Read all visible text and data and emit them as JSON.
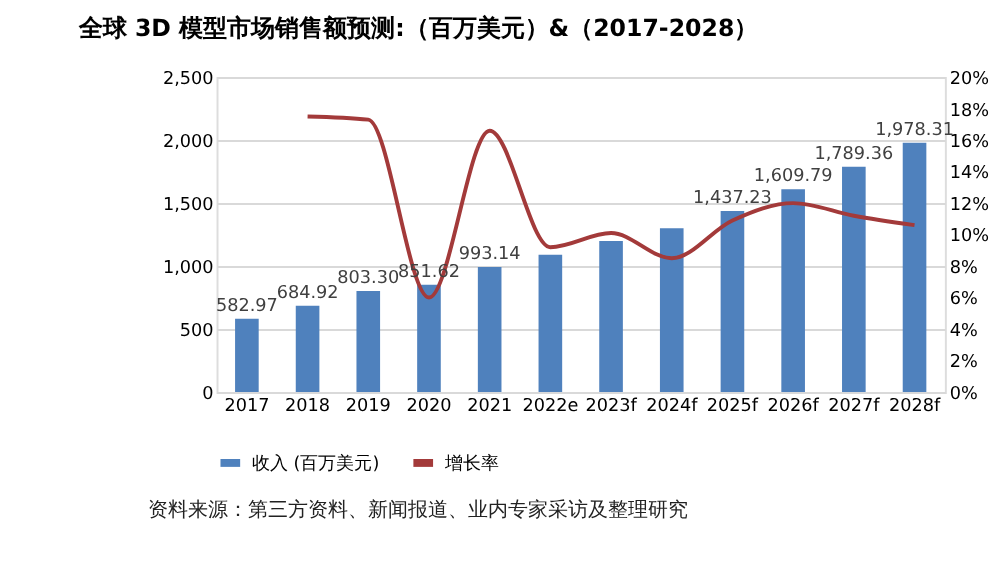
{
  "chart_data": {
    "type": "bar",
    "title": "全球 3D 模型市场销售额预测:（百万美元）&（2017-2028）",
    "categories": [
      "2017",
      "2018",
      "2019",
      "2020",
      "2021",
      "2022e",
      "2023f",
      "2024f",
      "2025f",
      "2026f",
      "2027f",
      "2028f"
    ],
    "series": [
      {
        "name": "收入 (百万美元)",
        "color": "#4f81bd",
        "values": [
          582.97,
          684.92,
          803.3,
          851.62,
          993.14,
          1090,
          1200,
          1300,
          1437.23,
          1609.79,
          1789.36,
          1978.31
        ],
        "value_labels": [
          "582.97",
          "684.92",
          "803.30",
          "851.62",
          "993.14",
          null,
          null,
          null,
          "1,437.23",
          "1,609.79",
          "1,789.36",
          "1,978.31"
        ]
      },
      {
        "name": "增长率",
        "type": "line",
        "axis": "y2",
        "color": "#a33a3a",
        "values": [
          null,
          17.5,
          17.3,
          6.0,
          16.6,
          9.2,
          10.1,
          8.5,
          10.9,
          12.0,
          11.2,
          10.6
        ]
      }
    ],
    "ylim": [
      0,
      2500
    ],
    "yticks": [
      {
        "value": 0,
        "label": "0"
      },
      {
        "value": 500,
        "label": "500"
      },
      {
        "value": 1000,
        "label": "1,000"
      },
      {
        "value": 1500,
        "label": "1,500"
      },
      {
        "value": 2000,
        "label": "2,000"
      },
      {
        "value": 2500,
        "label": "2,500"
      }
    ],
    "y2lim": [
      0,
      20
    ],
    "y2ticks": [
      {
        "value": 0,
        "label": "0%"
      },
      {
        "value": 2,
        "label": "2%"
      },
      {
        "value": 4,
        "label": "4%"
      },
      {
        "value": 6,
        "label": "6%"
      },
      {
        "value": 8,
        "label": "8%"
      },
      {
        "value": 10,
        "label": "10%"
      },
      {
        "value": 12,
        "label": "12%"
      },
      {
        "value": 14,
        "label": "14%"
      },
      {
        "value": 16,
        "label": "16%"
      },
      {
        "value": 18,
        "label": "18%"
      },
      {
        "value": 20,
        "label": "20%"
      }
    ],
    "grid": "y",
    "legend": "bottom",
    "marker": "none",
    "line_style": "solid",
    "annotations": [
      "资料来源：第三方资料、新闻报道、业内专家采访及整理研究"
    ]
  }
}
